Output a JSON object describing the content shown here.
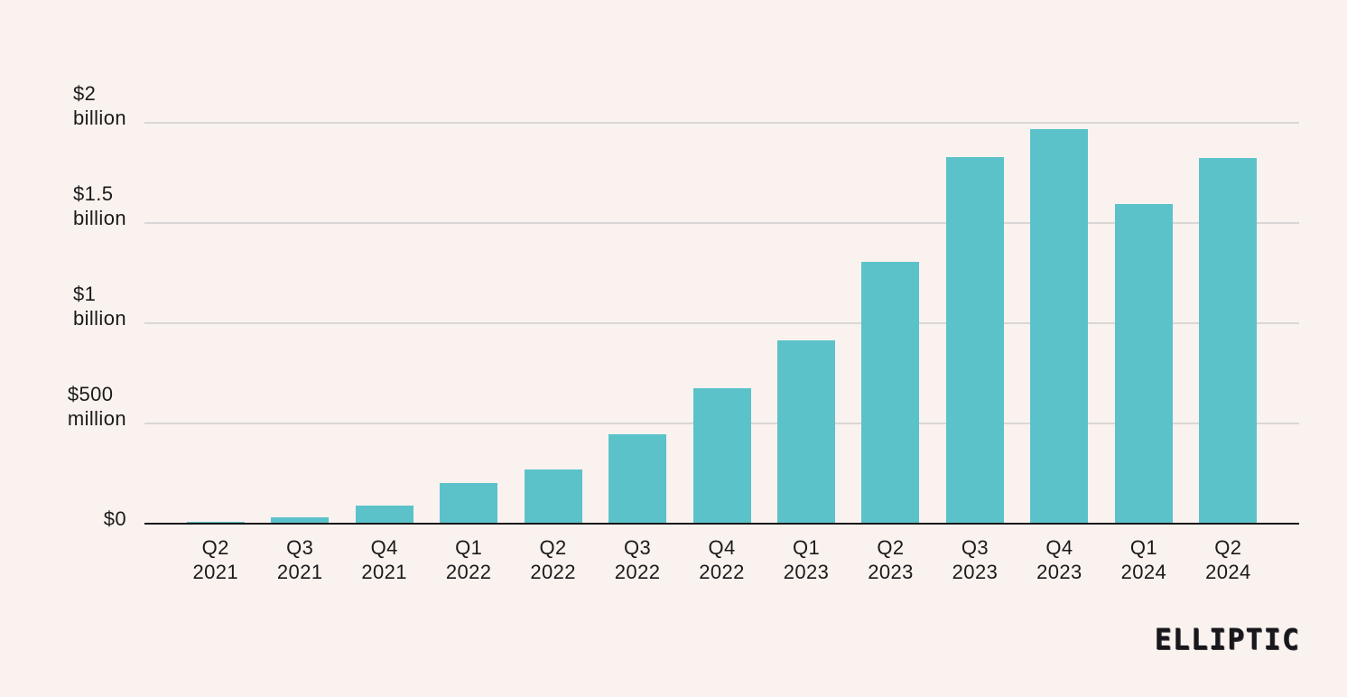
{
  "background_color": "#faf2ef",
  "chart_data": {
    "type": "bar",
    "title": "",
    "xlabel": "",
    "ylabel": "",
    "unit": "USD",
    "categories": [
      "Q2 2021",
      "Q3 2021",
      "Q4 2021",
      "Q1 2022",
      "Q2 2022",
      "Q3 2022",
      "Q4 2022",
      "Q1 2023",
      "Q2 2023",
      "Q3 2023",
      "Q4 2023",
      "Q1 2024",
      "Q2 2024"
    ],
    "values_usd_millions": [
      5,
      25,
      85,
      200,
      265,
      440,
      670,
      910,
      1300,
      1825,
      1965,
      1590,
      1820
    ],
    "ylim": [
      0,
      2000
    ],
    "grid": true,
    "legend": "none",
    "y_ticks": [
      {
        "value": 2000,
        "lines": [
          "$2",
          "billion"
        ]
      },
      {
        "value": 1500,
        "lines": [
          "$1.5",
          "billion"
        ]
      },
      {
        "value": 1000,
        "lines": [
          "$1",
          "billion"
        ]
      },
      {
        "value": 500,
        "lines": [
          "$500",
          "million"
        ]
      },
      {
        "value": 0,
        "lines": [
          "$0"
        ]
      }
    ],
    "bar_color": "#5bc2ca",
    "gridline_color": "#d9d7d5",
    "axis_color": "#161616"
  },
  "branding": {
    "logo_text": "ELLIPTIC"
  }
}
